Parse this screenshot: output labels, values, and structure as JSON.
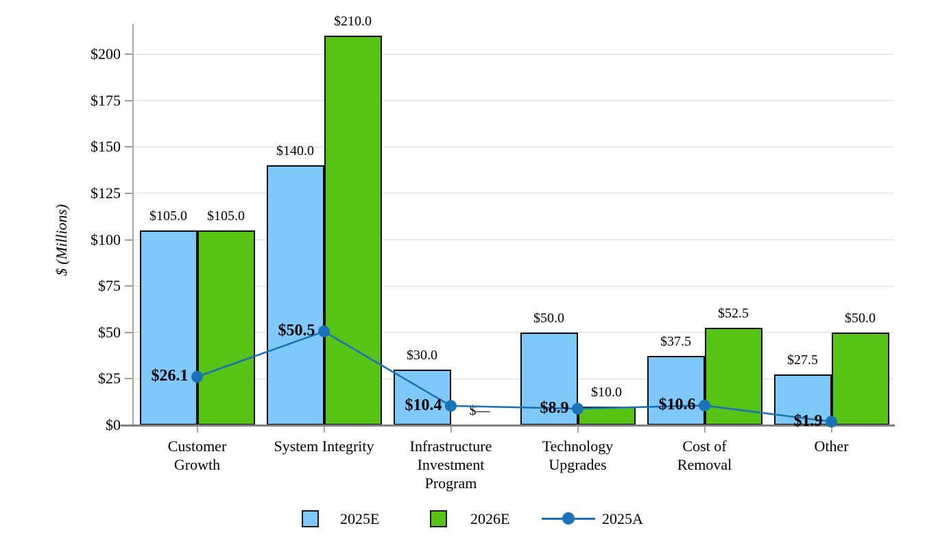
{
  "chart_data": {
    "type": "bar",
    "title": "",
    "ylabel": "$ (Millions)",
    "xlabel": "",
    "categories": [
      "Customer Growth",
      "System Integrity",
      "Infrastructure Investment Program",
      "Technology Upgrades",
      "Cost of Removal",
      "Other"
    ],
    "category_lines": [
      [
        "Customer",
        "Growth"
      ],
      [
        "System Integrity"
      ],
      [
        "Infrastructure",
        "Investment",
        "Program"
      ],
      [
        "Technology",
        "Upgrades"
      ],
      [
        "Cost of",
        "Removal"
      ],
      [
        "Other"
      ]
    ],
    "series": [
      {
        "name": "2025E",
        "type": "bar",
        "color": "#7ec9fa",
        "values": [
          105.0,
          140.0,
          30.0,
          50.0,
          37.5,
          27.5
        ],
        "labels": [
          "$105.0",
          "$140.0",
          "$30.0",
          "$50.0",
          "$37.5",
          "$27.5"
        ]
      },
      {
        "name": "2026E",
        "type": "bar",
        "color": "#57c314",
        "values": [
          105.0,
          210.0,
          0.0,
          10.0,
          52.5,
          50.0
        ],
        "labels": [
          "$105.0",
          "$210.0",
          "$—",
          "$10.0",
          "$52.5",
          "$50.0"
        ]
      },
      {
        "name": "2025A",
        "type": "line",
        "color": "#1b72b8",
        "values": [
          26.1,
          50.5,
          10.4,
          8.9,
          10.6,
          1.9
        ],
        "labels": [
          "$26.1",
          "$50.5",
          "$10.4",
          "$8.9",
          "$10.6",
          "$1.9"
        ]
      }
    ],
    "y_ticks": [
      0,
      25,
      50,
      75,
      100,
      125,
      150,
      175,
      200
    ],
    "y_tick_labels": [
      "$0",
      "$25",
      "$50",
      "$75",
      "$100",
      "$125",
      "$150",
      "$175",
      "$200"
    ],
    "ylim": [
      0,
      215
    ],
    "grid": true,
    "legend_position": "bottom",
    "style": {
      "grid_color": "#dadada",
      "axis_color": "#a6a6a6",
      "baseline_color": "#7f7f7f",
      "bar_border_color": "#0d0d0d",
      "text_color": "#000000"
    }
  },
  "legend": {
    "items": [
      {
        "label": "2025E",
        "swatch": "blue-square"
      },
      {
        "label": "2026E",
        "swatch": "green-square"
      },
      {
        "label": "2025A",
        "swatch": "line-with-dot"
      }
    ]
  }
}
